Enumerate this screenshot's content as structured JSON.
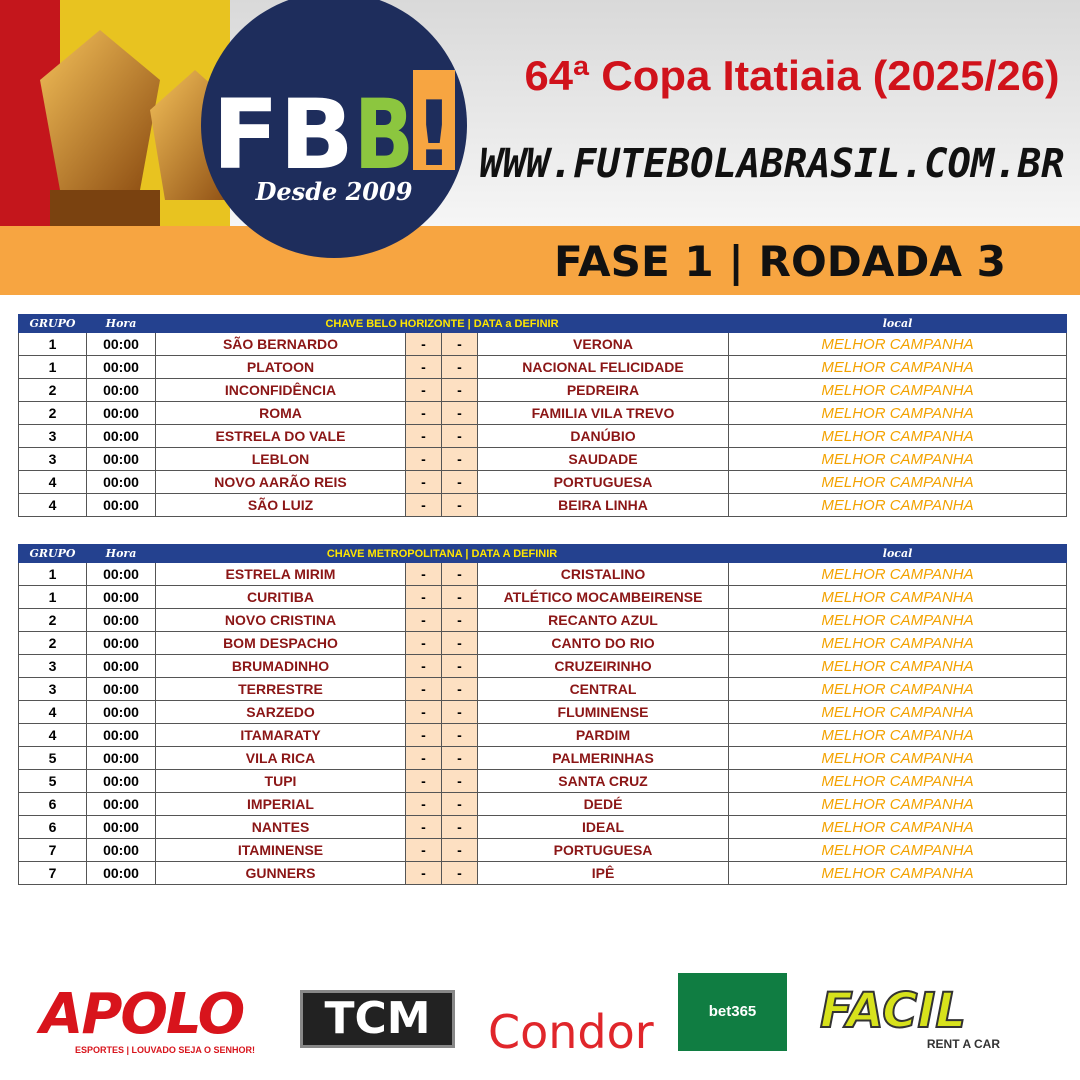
{
  "header": {
    "logo": {
      "first": "FB",
      "second": "B",
      "third": "!",
      "since": "Desde 2009"
    },
    "title": "64ª Copa Itatiaia (2025/26)",
    "url": "WWW.FUTEBOLABRASIL.COM.BR",
    "phase": "FASE 1 | RODADA 3"
  },
  "tables": [
    {
      "columns": [
        "GRUPO",
        "Hora",
        "CHAVE BELO HORIZONTE | DATA a DEFINIR",
        "local"
      ],
      "rows": [
        [
          "1",
          "00:00",
          "SÃO BERNARDO",
          "-",
          "-",
          "VERONA",
          "MELHOR CAMPANHA"
        ],
        [
          "1",
          "00:00",
          "PLATOON",
          "-",
          "-",
          "NACIONAL FELICIDADE",
          "MELHOR CAMPANHA"
        ],
        [
          "2",
          "00:00",
          "INCONFIDÊNCIA",
          "-",
          "-",
          "PEDREIRA",
          "MELHOR CAMPANHA"
        ],
        [
          "2",
          "00:00",
          "ROMA",
          "-",
          "-",
          "FAMILIA VILA TREVO",
          "MELHOR CAMPANHA"
        ],
        [
          "3",
          "00:00",
          "ESTRELA DO VALE",
          "-",
          "-",
          "DANÚBIO",
          "MELHOR CAMPANHA"
        ],
        [
          "3",
          "00:00",
          "LEBLON",
          "-",
          "-",
          "SAUDADE",
          "MELHOR CAMPANHA"
        ],
        [
          "4",
          "00:00",
          "NOVO AARÃO REIS",
          "-",
          "-",
          "PORTUGUESA",
          "MELHOR CAMPANHA"
        ],
        [
          "4",
          "00:00",
          "SÃO LUIZ",
          "-",
          "-",
          "BEIRA LINHA",
          "MELHOR CAMPANHA"
        ]
      ]
    },
    {
      "columns": [
        "GRUPO",
        "Hora",
        "CHAVE METROPOLITANA | DATA A DEFINIR",
        "local"
      ],
      "rows": [
        [
          "1",
          "00:00",
          "ESTRELA MIRIM",
          "-",
          "-",
          "CRISTALINO",
          "MELHOR CAMPANHA"
        ],
        [
          "1",
          "00:00",
          "CURITIBA",
          "-",
          "-",
          "ATLÉTICO MOCAMBEIRENSE",
          "MELHOR CAMPANHA"
        ],
        [
          "2",
          "00:00",
          "NOVO CRISTINA",
          "-",
          "-",
          "RECANTO AZUL",
          "MELHOR CAMPANHA"
        ],
        [
          "2",
          "00:00",
          "BOM DESPACHO",
          "-",
          "-",
          "CANTO DO RIO",
          "MELHOR CAMPANHA"
        ],
        [
          "3",
          "00:00",
          "BRUMADINHO",
          "-",
          "-",
          "CRUZEIRINHO",
          "MELHOR CAMPANHA"
        ],
        [
          "3",
          "00:00",
          "TERRESTRE",
          "-",
          "-",
          "CENTRAL",
          "MELHOR CAMPANHA"
        ],
        [
          "4",
          "00:00",
          "SARZEDO",
          "-",
          "-",
          "FLUMINENSE",
          "MELHOR CAMPANHA"
        ],
        [
          "4",
          "00:00",
          "ITAMARATY",
          "-",
          "-",
          "PARDIM",
          "MELHOR CAMPANHA"
        ],
        [
          "5",
          "00:00",
          "VILA RICA",
          "-",
          "-",
          "PALMERINHAS",
          "MELHOR CAMPANHA"
        ],
        [
          "5",
          "00:00",
          "TUPI",
          "-",
          "-",
          "SANTA CRUZ",
          "MELHOR CAMPANHA"
        ],
        [
          "6",
          "00:00",
          "IMPERIAL",
          "-",
          "-",
          "DEDÉ",
          "MELHOR CAMPANHA"
        ],
        [
          "6",
          "00:00",
          "NANTES",
          "-",
          "-",
          "IDEAL",
          "MELHOR CAMPANHA"
        ],
        [
          "7",
          "00:00",
          "ITAMINENSE",
          "-",
          "-",
          "PORTUGUESA",
          "MELHOR CAMPANHA"
        ],
        [
          "7",
          "00:00",
          "GUNNERS",
          "-",
          "-",
          "IPÊ",
          "MELHOR CAMPANHA"
        ]
      ]
    }
  ],
  "sponsors": {
    "apolo": "APOLO",
    "apolo_tagline": "ESPORTES | LOUVADO SEJA O SENHOR!",
    "tcm": "TCM",
    "condor": "Condor",
    "bet365": "bet365",
    "facil": "FACIL",
    "facil_tagline": "RENT A CAR"
  }
}
